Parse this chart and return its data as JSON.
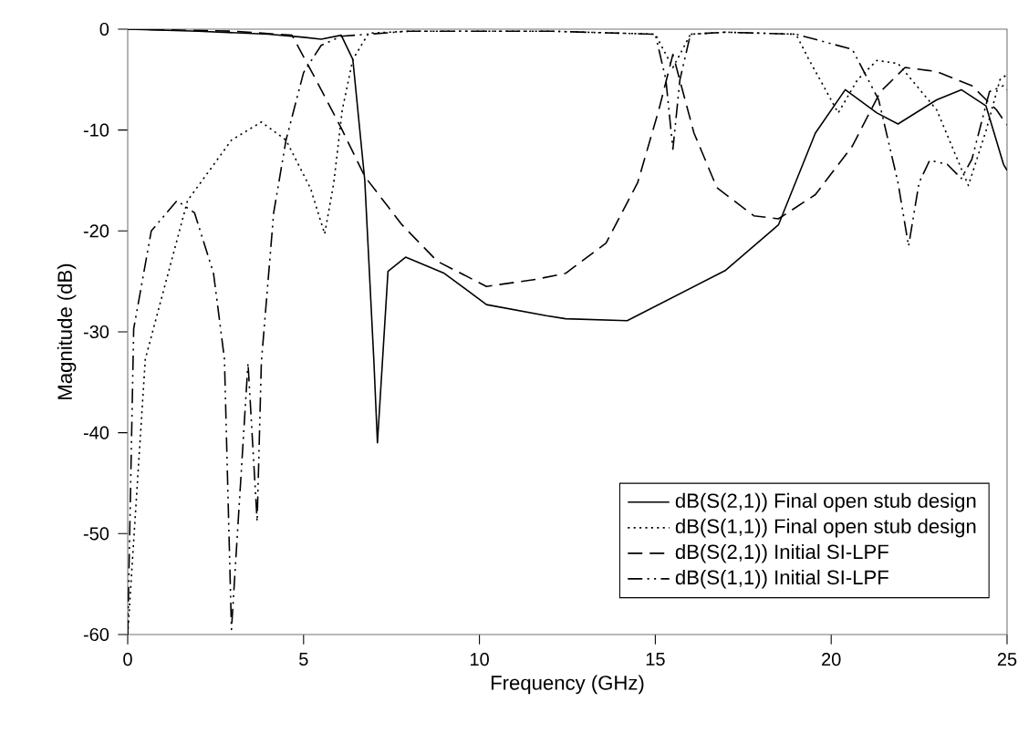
{
  "chart_data": {
    "type": "line",
    "xlabel": "Frequency (GHz)",
    "ylabel": "Magnitude (dB)",
    "xlim": [
      0,
      25
    ],
    "ylim": [
      -60,
      0
    ],
    "xticks": [
      0,
      5,
      10,
      15,
      20,
      25
    ],
    "yticks": [
      -60,
      -50,
      -40,
      -30,
      -20,
      -10,
      0
    ],
    "grid": false,
    "legend": "bottom right",
    "marker": "none",
    "series": [
      {
        "name": "dB(S(2,1)) Final open stub design",
        "color": "#000000",
        "line_style": "solid",
        "x": [
          0,
          2,
          4,
          5,
          5.5,
          6.07,
          6.4,
          6.74,
          7.0,
          7.1,
          7.4,
          7.9,
          9.0,
          10.2,
          11.9,
          12.45,
          14.2,
          17,
          18.5,
          19.55,
          20.4,
          21.3,
          21.9,
          23,
          23.7,
          24.4,
          24.9,
          25
        ],
        "values": [
          0,
          -0.2,
          -0.5,
          -0.8,
          -1,
          -0.6,
          -3,
          -15,
          -33,
          -41,
          -24,
          -22.6,
          -24.2,
          -27.3,
          -28.4,
          -28.7,
          -28.9,
          -23.9,
          -19.4,
          -10.3,
          -6,
          -8.3,
          -9.4,
          -7,
          -6,
          -7.6,
          -13.4,
          -14
        ]
      },
      {
        "name": "dB(S(1,1)) Final open stub design",
        "color": "#000000",
        "line_style": "dotted",
        "x": [
          0,
          0.5,
          1.7,
          2.95,
          3.8,
          4.5,
          5.2,
          5.6,
          5.86,
          6.1,
          6.4,
          6.85,
          8,
          12,
          15,
          15.3,
          15.5,
          15.7,
          16,
          17,
          19,
          19.35,
          20.2,
          20.75,
          21.3,
          21.9,
          23,
          23.9,
          24.4,
          24.8,
          25
        ],
        "values": [
          -60,
          -32.7,
          -17,
          -11,
          -9.2,
          -11,
          -15.8,
          -20.3,
          -15.2,
          -8,
          -3,
          -0.4,
          -0.2,
          -0.2,
          -0.5,
          -2.5,
          -3.8,
          -2.5,
          -0.5,
          -0.3,
          -0.5,
          -2.9,
          -8.3,
          -5,
          -3.1,
          -3.4,
          -8,
          -15.5,
          -10.1,
          -5,
          -4.5
        ]
      },
      {
        "name": "dB(S(2,1)) Initial SI-LPF",
        "color": "#000000",
        "line_style": "dashed",
        "x": [
          0,
          3,
          4.67,
          5.35,
          6.07,
          6.74,
          7.8,
          8.8,
          10.2,
          11.6,
          12.45,
          13.6,
          14.5,
          15.1,
          15.5,
          16.1,
          16.75,
          17.8,
          18.5,
          19.55,
          20.6,
          21.4,
          22.1,
          23,
          24,
          24.7,
          25
        ],
        "values": [
          0,
          -0.2,
          -0.6,
          -5,
          -9.8,
          -14.6,
          -19.4,
          -23,
          -25.5,
          -24.8,
          -24.2,
          -21.2,
          -15.2,
          -8,
          -2.5,
          -10.3,
          -15.7,
          -18.5,
          -18.8,
          -16.4,
          -11.6,
          -6.2,
          -3.8,
          -4.2,
          -5.6,
          -8,
          -9.5
        ]
      },
      {
        "name": "dB(S(1,1)) Initial SI-LPF",
        "color": "#000000",
        "line_style": "dashdotdot",
        "x": [
          0,
          0.17,
          0.67,
          1.4,
          1.9,
          2.44,
          2.75,
          2.95,
          3.42,
          3.68,
          3.8,
          4.15,
          4.5,
          5.0,
          5.5,
          6.07,
          8,
          12,
          15,
          15.3,
          15.5,
          15.7,
          16,
          17,
          19,
          20.6,
          21.35,
          21.9,
          22.2,
          22.5,
          22.8,
          23.3,
          23.7,
          24.0,
          24.5,
          24.9,
          25
        ],
        "values": [
          -60,
          -29.7,
          -20,
          -17,
          -18.2,
          -24.2,
          -32.7,
          -59.5,
          -33.1,
          -48.8,
          -33,
          -18.2,
          -11,
          -4.3,
          -1.6,
          -0.7,
          -0.2,
          -0.2,
          -0.5,
          -5,
          -11.9,
          -5,
          -0.5,
          -0.3,
          -0.5,
          -2,
          -7,
          -15.2,
          -21.5,
          -15.2,
          -13,
          -13.4,
          -14.8,
          -12.9,
          -6.2,
          -5.6,
          -6
        ]
      }
    ]
  }
}
